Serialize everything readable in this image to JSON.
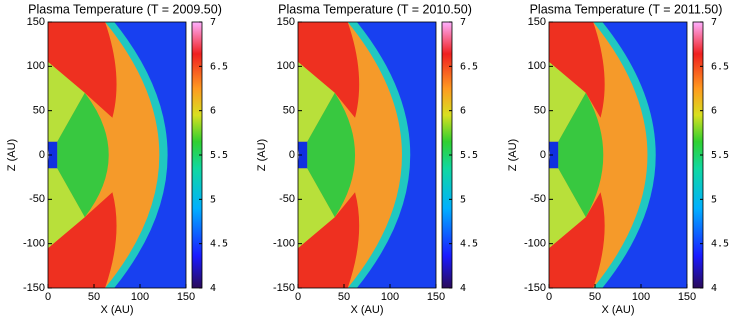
{
  "chart_data": [
    {
      "type": "heatmap",
      "title": "Plasma Temperature (T = 2009.50)",
      "xlabel": "X (AU)",
      "ylabel": "Z (AU)",
      "xlim": [
        0,
        150
      ],
      "ylim": [
        -150,
        150
      ],
      "xticks": [
        0,
        50,
        100,
        150
      ],
      "yticks": [
        -150,
        -100,
        -50,
        0,
        50,
        100,
        150
      ],
      "clim": [
        4,
        7
      ],
      "cticks": [
        4,
        4.5,
        5,
        5.5,
        6,
        6.5,
        7
      ]
    },
    {
      "type": "heatmap",
      "title": "Plasma Temperature (T = 2010.50)",
      "xlabel": "X (AU)",
      "ylabel": "Z (AU)",
      "xlim": [
        0,
        150
      ],
      "ylim": [
        -150,
        150
      ],
      "xticks": [
        0,
        50,
        100,
        150
      ],
      "yticks": [
        -150,
        -100,
        -50,
        0,
        50,
        100,
        150
      ],
      "clim": [
        4,
        7
      ],
      "cticks": [
        4,
        4.5,
        5,
        5.5,
        6,
        6.5,
        7
      ]
    },
    {
      "type": "heatmap",
      "title": "Plasma Temperature (T = 2011.50)",
      "xlabel": "X (AU)",
      "ylabel": "Z (AU)",
      "xlim": [
        0,
        150
      ],
      "ylim": [
        -150,
        150
      ],
      "xticks": [
        0,
        50,
        100,
        150
      ],
      "yticks": [
        -150,
        -100,
        -50,
        0,
        50,
        100,
        150
      ],
      "clim": [
        4,
        7
      ],
      "cticks": [
        4,
        4.5,
        5,
        5.5,
        6,
        6.5,
        7
      ]
    }
  ]
}
